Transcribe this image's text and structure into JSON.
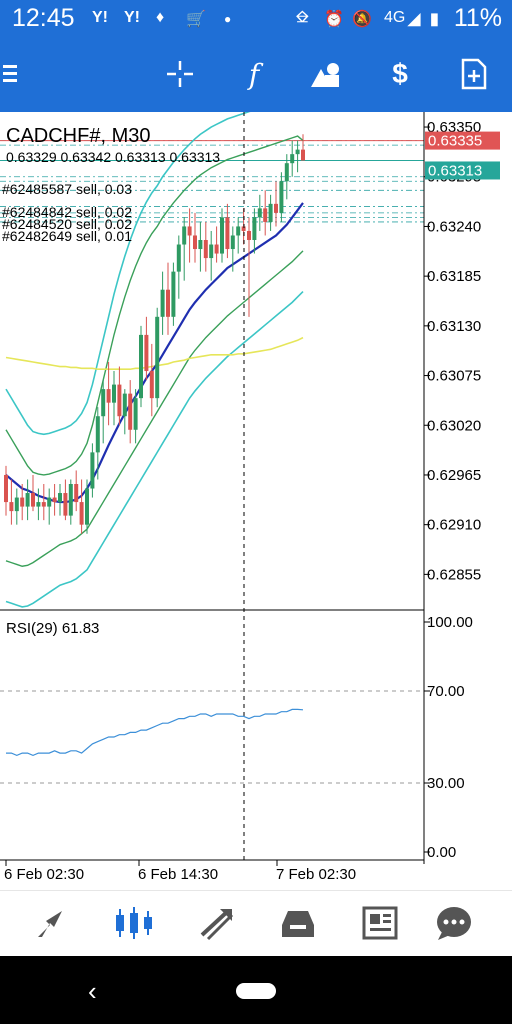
{
  "status_bar": {
    "time": "12:45",
    "battery": "11%",
    "network": "4G",
    "left_icons": [
      "Y!",
      "Y!",
      "notification-icon",
      "cart-icon",
      "dot-icon"
    ],
    "right_icons": [
      "cast-icon",
      "alarm-icon",
      "mute-icon",
      "signal-icon",
      "battery-icon"
    ]
  },
  "toolbar": {
    "icons": [
      "menu-icon",
      "crosshair-icon",
      "function-icon",
      "objects-icon",
      "trade-icon",
      "new-order-icon"
    ]
  },
  "chart": {
    "symbol": "CADCHF#, M30",
    "ohlc": "0.63329 0.63342 0.63313 0.63313",
    "orders": [
      "#62485587 sell, 0.03",
      "#62484842 sell, 0.02",
      "#62484520 sell, 0.02",
      "#62482649 sell, 0.01"
    ],
    "ask_price": "0.63335",
    "bid_price": "0.63313",
    "price_ticks": [
      "0.63350",
      "0.63295",
      "0.63240",
      "0.63185",
      "0.63130",
      "0.63075",
      "0.63020",
      "0.62965",
      "0.62910",
      "0.62855"
    ],
    "time_labels": [
      "6 Feb 02:30",
      "6 Feb 14:30",
      "7 Feb 02:30"
    ],
    "ask_color": "#e05555",
    "bid_color": "#26a69a"
  },
  "rsi": {
    "label": "RSI(29) 61.83",
    "levels": [
      "100.00",
      "70.00",
      "30.00",
      "0.00"
    ]
  },
  "chart_data": {
    "type": "candlestick",
    "symbol": "CADCHF#",
    "timeframe": "M30",
    "ylim": [
      0.6282,
      0.6336
    ],
    "ohlc": [
      [
        0.62965,
        0.62975,
        0.6292,
        0.62935
      ],
      [
        0.62935,
        0.6296,
        0.6291,
        0.62925
      ],
      [
        0.62925,
        0.6295,
        0.6291,
        0.6294
      ],
      [
        0.6294,
        0.62955,
        0.62915,
        0.6293
      ],
      [
        0.6293,
        0.6296,
        0.62915,
        0.62945
      ],
      [
        0.62945,
        0.62965,
        0.62925,
        0.6293
      ],
      [
        0.6293,
        0.6295,
        0.62915,
        0.62935
      ],
      [
        0.62935,
        0.62955,
        0.62915,
        0.6293
      ],
      [
        0.6293,
        0.6295,
        0.6291,
        0.6294
      ],
      [
        0.6294,
        0.62955,
        0.6292,
        0.62935
      ],
      [
        0.62935,
        0.62955,
        0.6292,
        0.62945
      ],
      [
        0.62945,
        0.6296,
        0.62915,
        0.6292
      ],
      [
        0.6292,
        0.6296,
        0.6291,
        0.62955
      ],
      [
        0.62955,
        0.6297,
        0.62925,
        0.62935
      ],
      [
        0.62935,
        0.6296,
        0.629,
        0.6291
      ],
      [
        0.6291,
        0.6296,
        0.629,
        0.6295
      ],
      [
        0.6295,
        0.63,
        0.6294,
        0.6299
      ],
      [
        0.6299,
        0.6304,
        0.6296,
        0.6303
      ],
      [
        0.6303,
        0.6307,
        0.63,
        0.6306
      ],
      [
        0.6306,
        0.6309,
        0.6302,
        0.63045
      ],
      [
        0.63045,
        0.6308,
        0.6302,
        0.63065
      ],
      [
        0.63065,
        0.63085,
        0.6302,
        0.6303
      ],
      [
        0.6303,
        0.6306,
        0.6301,
        0.63055
      ],
      [
        0.63055,
        0.6307,
        0.63,
        0.63015
      ],
      [
        0.63015,
        0.6306,
        0.63,
        0.6305
      ],
      [
        0.6305,
        0.6313,
        0.6304,
        0.6312
      ],
      [
        0.6312,
        0.6314,
        0.6307,
        0.6308
      ],
      [
        0.6308,
        0.6311,
        0.6303,
        0.6305
      ],
      [
        0.6305,
        0.6315,
        0.6304,
        0.6314
      ],
      [
        0.6314,
        0.6319,
        0.6312,
        0.6317
      ],
      [
        0.6317,
        0.632,
        0.6312,
        0.6314
      ],
      [
        0.6314,
        0.632,
        0.6313,
        0.6319
      ],
      [
        0.6319,
        0.6323,
        0.6316,
        0.6322
      ],
      [
        0.6322,
        0.6325,
        0.6318,
        0.6324
      ],
      [
        0.6324,
        0.6326,
        0.632,
        0.6323
      ],
      [
        0.6323,
        0.63255,
        0.632,
        0.63215
      ],
      [
        0.63215,
        0.63245,
        0.6319,
        0.63225
      ],
      [
        0.63225,
        0.63245,
        0.6319,
        0.63205
      ],
      [
        0.63205,
        0.63235,
        0.6318,
        0.6322
      ],
      [
        0.6322,
        0.6324,
        0.632,
        0.6321
      ],
      [
        0.6321,
        0.6326,
        0.632,
        0.6325
      ],
      [
        0.6325,
        0.63265,
        0.63205,
        0.63215
      ],
      [
        0.63215,
        0.6324,
        0.6319,
        0.6323
      ],
      [
        0.6323,
        0.6325,
        0.6321,
        0.6324
      ],
      [
        0.6324,
        0.6326,
        0.6322,
        0.63235
      ],
      [
        0.63235,
        0.6325,
        0.6314,
        0.63225
      ],
      [
        0.63225,
        0.6326,
        0.6321,
        0.6325
      ],
      [
        0.6325,
        0.63275,
        0.63235,
        0.6326
      ],
      [
        0.6326,
        0.6328,
        0.6323,
        0.63245
      ],
      [
        0.63245,
        0.63275,
        0.63235,
        0.63265
      ],
      [
        0.63265,
        0.6329,
        0.6324,
        0.63255
      ],
      [
        0.63255,
        0.633,
        0.63245,
        0.6329
      ],
      [
        0.6329,
        0.6332,
        0.6327,
        0.6331
      ],
      [
        0.6331,
        0.63335,
        0.63295,
        0.6332
      ],
      [
        0.6332,
        0.63335,
        0.633,
        0.63325
      ],
      [
        0.63325,
        0.63342,
        0.63313,
        0.63313
      ]
    ],
    "ma_fast": [
      0.62965,
      0.6296,
      0.62955,
      0.6295,
      0.62948,
      0.62945,
      0.62942,
      0.6294,
      0.62938,
      0.62936,
      0.62935,
      0.62935,
      0.62936,
      0.62938,
      0.62942,
      0.6295,
      0.6296,
      0.62972,
      0.62985,
      0.62998,
      0.6301,
      0.63022,
      0.63033,
      0.63043,
      0.63052,
      0.63062,
      0.63072,
      0.6308,
      0.63088,
      0.63098,
      0.63108,
      0.63118,
      0.63128,
      0.63138,
      0.63148,
      0.63156,
      0.63163,
      0.6317,
      0.63176,
      0.63182,
      0.63188,
      0.63194,
      0.63198,
      0.63202,
      0.63206,
      0.6321,
      0.63214,
      0.63218,
      0.63222,
      0.63226,
      0.6323,
      0.63236,
      0.63242,
      0.6325,
      0.63258,
      0.63266
    ],
    "ma_slow": [
      0.63095,
      0.63094,
      0.63093,
      0.63092,
      0.63091,
      0.6309,
      0.63089,
      0.63088,
      0.63087,
      0.63086,
      0.63085,
      0.63085,
      0.63084,
      0.63084,
      0.63083,
      0.63083,
      0.63083,
      0.63082,
      0.63082,
      0.63082,
      0.63082,
      0.63082,
      0.63082,
      0.63082,
      0.63083,
      0.63083,
      0.63084,
      0.63085,
      0.63086,
      0.63087,
      0.63088,
      0.6309,
      0.63091,
      0.63092,
      0.63094,
      0.63095,
      0.63096,
      0.63097,
      0.63098,
      0.63098,
      0.63098,
      0.63098,
      0.63098,
      0.63099,
      0.63099,
      0.631,
      0.63101,
      0.63102,
      0.63103,
      0.63104,
      0.63106,
      0.63108,
      0.6311,
      0.63112,
      0.63114,
      0.63117
    ],
    "bb_inner_upper": [
      0.63015,
      0.63005,
      0.62995,
      0.62985,
      0.62975,
      0.62968,
      0.62966,
      0.62965,
      0.62966,
      0.62968,
      0.6297,
      0.62972,
      0.62975,
      0.6298,
      0.62988,
      0.63,
      0.6302,
      0.63045,
      0.6307,
      0.63095,
      0.6312,
      0.63142,
      0.63162,
      0.6318,
      0.63196,
      0.6321,
      0.63222,
      0.63232,
      0.6324,
      0.6325,
      0.63258,
      0.63266,
      0.63273,
      0.6328,
      0.63286,
      0.63292,
      0.63297,
      0.63301,
      0.63305,
      0.63308,
      0.63311,
      0.63314,
      0.63316,
      0.63318,
      0.6332,
      0.63322,
      0.63324,
      0.63326,
      0.63328,
      0.6333,
      0.63332,
      0.63334,
      0.63336,
      0.63338,
      0.6334,
      0.63335
    ],
    "bb_inner_lower": [
      0.6287,
      0.62868,
      0.62866,
      0.62864,
      0.62865,
      0.62868,
      0.62872,
      0.62876,
      0.6288,
      0.62884,
      0.62888,
      0.6289,
      0.62892,
      0.62895,
      0.629,
      0.62905,
      0.62915,
      0.62925,
      0.62935,
      0.62945,
      0.62955,
      0.62965,
      0.62975,
      0.62985,
      0.62995,
      0.63005,
      0.63015,
      0.63025,
      0.63035,
      0.63045,
      0.63055,
      0.63065,
      0.63075,
      0.63085,
      0.63095,
      0.63103,
      0.6311,
      0.63117,
      0.63123,
      0.63129,
      0.63135,
      0.63141,
      0.63146,
      0.63151,
      0.63156,
      0.63161,
      0.63166,
      0.63171,
      0.63176,
      0.63181,
      0.63186,
      0.63191,
      0.63196,
      0.63201,
      0.63207,
      0.63213
    ],
    "rsi": [
      43,
      43,
      42,
      43,
      43,
      42,
      43,
      43,
      43,
      44,
      43,
      43,
      44,
      44,
      43,
      45,
      47,
      48,
      49,
      50,
      50,
      51,
      51,
      52,
      52,
      53,
      53,
      54,
      55,
      56,
      56,
      57,
      58,
      58,
      59,
      59,
      60,
      60,
      59,
      60,
      60,
      60,
      60,
      59,
      59,
      58,
      59,
      59,
      60,
      60,
      60,
      61,
      61,
      62,
      62,
      61.83
    ]
  }
}
